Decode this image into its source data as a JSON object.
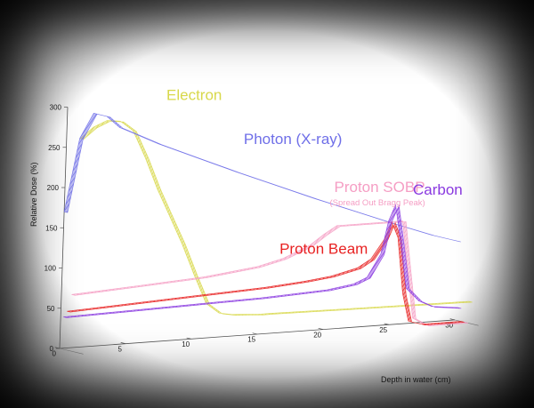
{
  "chart_data": {
    "type": "line",
    "xlabel": "Depth in water (cm)",
    "ylabel": "Relative Dose (%)",
    "xlim": [
      0,
      30
    ],
    "ylim": [
      0,
      300
    ],
    "x_ticks": [
      "0",
      "5",
      "10",
      "15",
      "20",
      "25",
      "30"
    ],
    "y_ticks": [
      "0",
      "50",
      "100",
      "150",
      "200",
      "250",
      "300"
    ],
    "grid": false,
    "series": [
      {
        "name": "Electron",
        "color": "#d8d84a",
        "x": [
          0,
          1,
          2,
          3,
          4,
          5,
          6,
          7,
          8,
          9,
          10,
          11,
          12,
          13,
          14,
          15,
          20,
          25,
          30
        ],
        "y": [
          265,
          278,
          285,
          283,
          270,
          235,
          195,
          160,
          125,
          85,
          48,
          35,
          32,
          31,
          30,
          30,
          29,
          28,
          27
        ]
      },
      {
        "name": "Photon (X-ray)",
        "color": "#6f6fe8",
        "x": [
          0,
          1,
          2,
          3,
          4,
          5,
          7,
          10,
          13,
          16,
          19,
          22,
          25,
          28,
          30
        ],
        "y": [
          170,
          260,
          290,
          285,
          270,
          262,
          246,
          225,
          204,
          184,
          164,
          145,
          126,
          108,
          98
        ]
      },
      {
        "name": "Proton Beam",
        "color": "#e82222",
        "x": [
          0,
          5,
          10,
          15,
          18,
          20,
          22,
          23,
          24,
          24.5,
          25,
          25.5,
          26,
          27,
          30
        ],
        "y": [
          48,
          52,
          56,
          60,
          64,
          68,
          76,
          86,
          110,
          130,
          110,
          40,
          5,
          0,
          0
        ]
      },
      {
        "name": "Proton SOBP",
        "subtitle": "(Spread Out Bragg Peak)",
        "color": "#f59ec4",
        "x": [
          0,
          5,
          10,
          14,
          16,
          18,
          19,
          20,
          22,
          24,
          25,
          25.5,
          26,
          27,
          30
        ],
        "y": [
          70,
          75,
          80,
          88,
          96,
          110,
          122,
          132,
          132,
          132,
          132,
          70,
          10,
          0,
          0
        ]
      },
      {
        "name": "Carbon",
        "color": "#8a3ae0",
        "x": [
          0,
          5,
          10,
          15,
          20,
          22,
          23,
          24,
          24.5,
          25,
          25.5,
          26,
          27,
          28,
          30
        ],
        "y": [
          40,
          42,
          44,
          46,
          50,
          55,
          62,
          90,
          130,
          150,
          100,
          45,
          28,
          20,
          16
        ]
      }
    ]
  }
}
